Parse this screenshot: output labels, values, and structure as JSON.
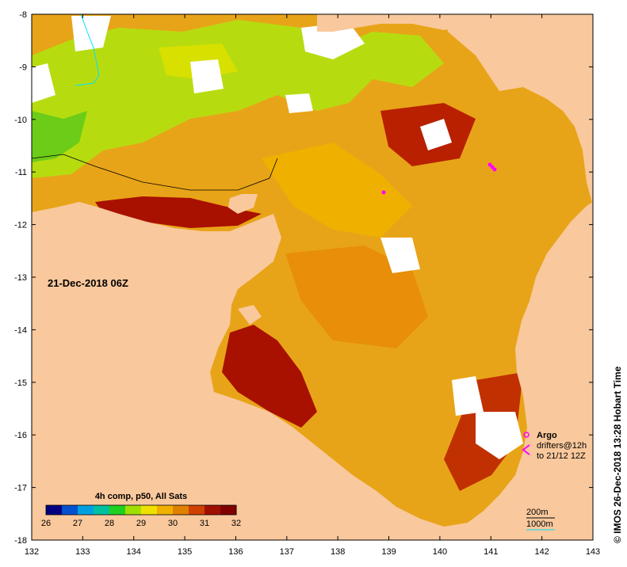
{
  "map": {
    "date_label": "21-Dec-2018 06Z",
    "credit": "© IMOS 26-Dec-2018 13:28 Hobart Time",
    "x_ticks": [
      "132",
      "133",
      "134",
      "135",
      "136",
      "137",
      "138",
      "139",
      "140",
      "141",
      "142",
      "143"
    ],
    "y_ticks": [
      "-8",
      "-9",
      "-10",
      "-11",
      "-12",
      "-13",
      "-14",
      "-15",
      "-16",
      "-17",
      "-18"
    ],
    "colorbar": {
      "title": "4h comp, p50, All Sats",
      "labels": [
        "26",
        "27",
        "28",
        "29",
        "30",
        "31",
        "32"
      ],
      "colors": [
        "#000080",
        "#0050d0",
        "#00a0e0",
        "#00c0a0",
        "#20d020",
        "#a0e000",
        "#f0e000",
        "#f0b000",
        "#e08000",
        "#d04000",
        "#a01000",
        "#800000"
      ]
    },
    "legend": {
      "argo_label": "Argo",
      "drifters_label": "drifters@12h",
      "drifters_date": "to 21/12 12Z",
      "argo_color": "#ff00ff"
    },
    "scale": {
      "isobath_200": "200m",
      "isobath_1000": "1000m",
      "isobath_200_color": "#000000",
      "isobath_1000_color": "#00ffff"
    },
    "colors": {
      "land": "#f9c89c",
      "ocean_warm": "#e49a10",
      "ocean_hot": "#a81000",
      "ocean_mid": "#f0c000",
      "ocean_cool": "#9ad800",
      "cloud": "#ffffff"
    }
  }
}
